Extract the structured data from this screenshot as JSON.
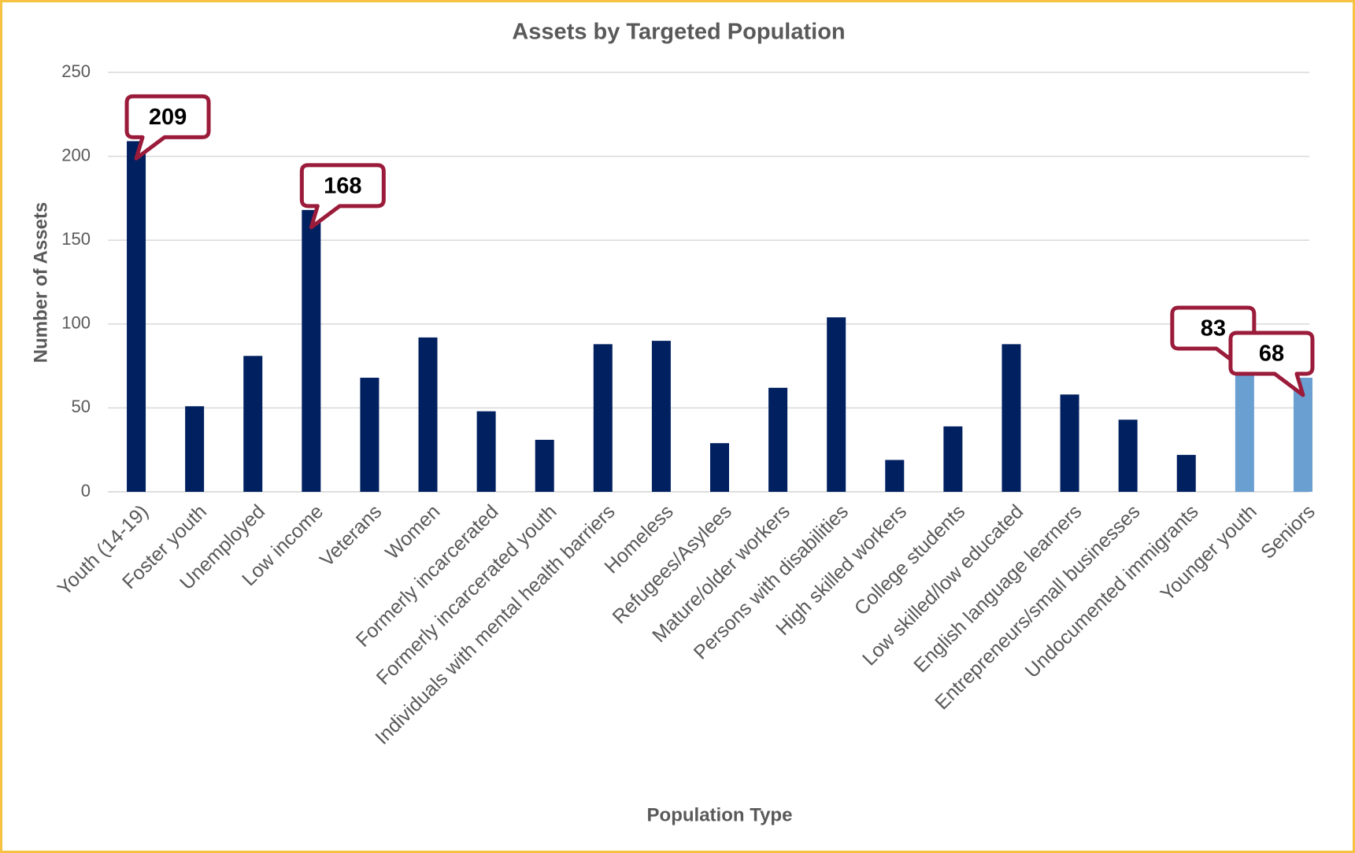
{
  "chart_data": {
    "type": "bar",
    "title": "Assets by Targeted Population",
    "x_label": "Population Type",
    "y_label": "Number of Assets",
    "categories": [
      "Youth (14-19)",
      "Foster youth",
      "Unemployed",
      "Low income",
      "Veterans",
      "Women",
      "Formerly incarcerated",
      "Formerly incarcerated youth",
      "Individuals with mental health barriers",
      "Homeless",
      "Refugees/Asylees",
      "Mature/older workers",
      "Persons with disabilities",
      "High skilled workers",
      "College students",
      "Low skilled/low educated",
      "English language learners",
      "Entrepreneurs/small businesses",
      "Undocumented immigrants",
      "Younger youth",
      "Seniors"
    ],
    "values": [
      209,
      51,
      81,
      168,
      68,
      92,
      48,
      31,
      88,
      90,
      29,
      62,
      104,
      19,
      39,
      88,
      58,
      43,
      22,
      83,
      68
    ],
    "value_labels": [
      209,
      null,
      null,
      168,
      null,
      null,
      null,
      null,
      null,
      null,
      null,
      null,
      null,
      null,
      null,
      null,
      null,
      null,
      null,
      83,
      68
    ],
    "colors": [
      "#002060",
      "#002060",
      "#002060",
      "#002060",
      "#002060",
      "#002060",
      "#002060",
      "#002060",
      "#002060",
      "#002060",
      "#002060",
      "#002060",
      "#002060",
      "#002060",
      "#002060",
      "#002060",
      "#002060",
      "#002060",
      "#002060",
      "#6a9fd2",
      "#6a9fd2"
    ],
    "ylim": [
      0,
      250
    ],
    "yticks": [
      0,
      50,
      100,
      150,
      200,
      250
    ],
    "grid": true
  }
}
